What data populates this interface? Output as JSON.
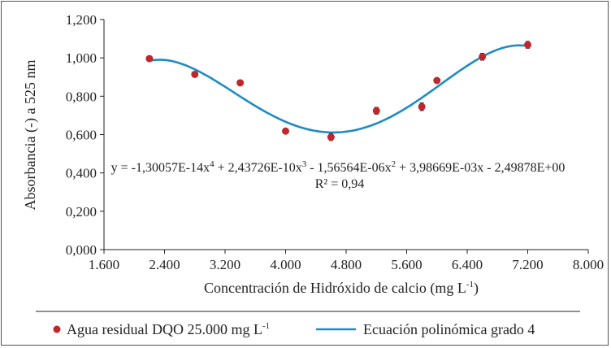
{
  "chart_data": {
    "type": "scatter",
    "xlabel": "Concentración  de Hidróxido de calcio (mg L",
    "xlabel_sup": "-1",
    "xlabel_end": ")",
    "ylabel": "Absorbancia (-) a 525 nm",
    "xlim": [
      1600,
      8000
    ],
    "ylim": [
      0,
      1.2
    ],
    "x_ticks": [
      "1.600",
      "2.400",
      "3.200",
      "4.000",
      "4.800",
      "5.600",
      "6.400",
      "7.200",
      "8.000"
    ],
    "y_ticks": [
      "0,000",
      "0,200",
      "0,400",
      "0,600",
      "0,800",
      "1,000",
      "1,200"
    ],
    "grid": false,
    "legend_position": "bottom",
    "series": [
      {
        "name": "Agua residual DQO 25.000 mg L",
        "name_sup": "-1",
        "kind": "points",
        "color": "#c0262d",
        "x": [
          2200,
          2800,
          3400,
          4000,
          4600,
          5200,
          5800,
          6000,
          6600,
          7200
        ],
        "y": [
          0.996,
          0.914,
          0.87,
          0.618,
          0.587,
          0.724,
          0.745,
          0.882,
          1.006,
          1.068
        ],
        "error": [
          0.004,
          0.008,
          0.006,
          0.006,
          0.018,
          0.018,
          0.02,
          0.012,
          0.018,
          0.018
        ]
      },
      {
        "name": "Ecuación polinómica grado 4",
        "kind": "polynomial-fit",
        "color": "#1e8bc3",
        "x_range": [
          2200,
          7200
        ],
        "coefficients_desc": [
          -1.30057e-14,
          2.43726e-10,
          -1.56564e-06,
          0.00398669,
          -2.49878
        ]
      }
    ],
    "annotations": {
      "equation_parts": [
        "y = -1,30057E-14x",
        "4",
        " + 2,43726E-10x",
        "3",
        " - 1,56564E-06x",
        "2",
        " + 3,98669E-03x - 2,49878E+00"
      ],
      "r2": "R² = 0,94"
    }
  }
}
